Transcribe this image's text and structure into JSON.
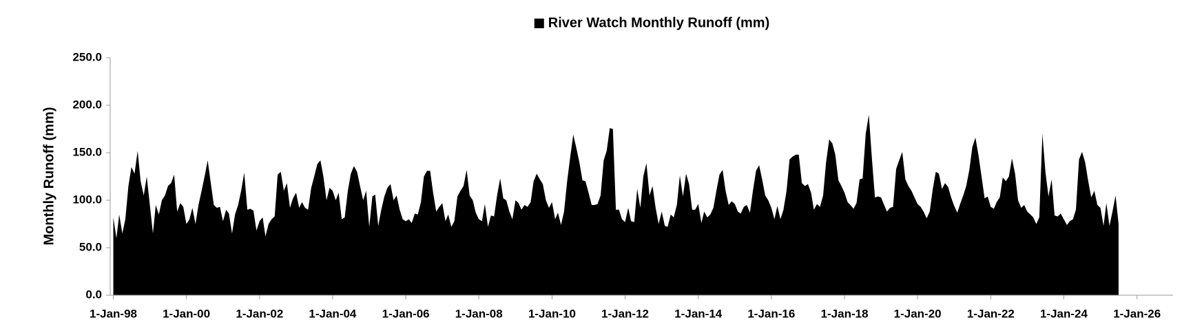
{
  "chart_data": {
    "type": "area",
    "y_label": "Monthly Runoff (mm)",
    "legend": "top",
    "ylim": [
      0,
      250
    ],
    "yticks": [
      {
        "value": 0,
        "label": "0.0"
      },
      {
        "value": 50,
        "label": "50.0"
      },
      {
        "value": 100,
        "label": "100.0"
      },
      {
        "value": 150,
        "label": "150.0"
      },
      {
        "value": 200,
        "label": "200.0"
      },
      {
        "value": 250,
        "label": "250.0"
      }
    ],
    "xlim": [
      "1997-12-01",
      "2026-12-27"
    ],
    "xticks": [
      {
        "value": "1998-01-01",
        "label": "1-Jan-98"
      },
      {
        "value": "2000-01-01",
        "label": "1-Jan-00"
      },
      {
        "value": "2002-01-01",
        "label": "1-Jan-02"
      },
      {
        "value": "2004-01-01",
        "label": "1-Jan-04"
      },
      {
        "value": "2006-01-01",
        "label": "1-Jan-06"
      },
      {
        "value": "2008-01-01",
        "label": "1-Jan-08"
      },
      {
        "value": "2010-01-01",
        "label": "1-Jan-10"
      },
      {
        "value": "2012-01-01",
        "label": "1-Jan-12"
      },
      {
        "value": "2014-01-01",
        "label": "1-Jan-14"
      },
      {
        "value": "2016-01-01",
        "label": "1-Jan-16"
      },
      {
        "value": "2018-01-01",
        "label": "1-Jan-18"
      },
      {
        "value": "2020-01-01",
        "label": "1-Jan-20"
      },
      {
        "value": "2022-01-01",
        "label": "1-Jan-22"
      },
      {
        "value": "2024-01-01",
        "label": "1-Jan-24"
      },
      {
        "value": "2026-01-01",
        "label": "1-Jan-26"
      }
    ],
    "x": [
      "1998-01-01",
      "1998-02-01",
      "1998-03-01",
      "1998-04-01",
      "1998-05-01",
      "1998-06-01",
      "1998-07-01",
      "1998-08-01",
      "1998-09-01",
      "1998-10-01",
      "1998-11-01",
      "1998-12-01",
      "1999-01-01",
      "1999-02-01",
      "1999-03-01",
      "1999-04-01",
      "1999-05-01",
      "1999-06-01",
      "1999-07-01",
      "1999-08-01",
      "1999-09-01",
      "1999-10-01",
      "1999-11-01",
      "1999-12-01",
      "2000-01-01",
      "2000-02-01",
      "2000-03-01",
      "2000-04-01",
      "2000-05-01",
      "2000-06-01",
      "2000-07-01",
      "2000-08-01",
      "2000-09-01",
      "2000-10-01",
      "2000-11-01",
      "2000-12-01",
      "2001-01-01",
      "2001-02-01",
      "2001-03-01",
      "2001-04-01",
      "2001-05-01",
      "2001-06-01",
      "2001-07-01",
      "2001-08-01",
      "2001-09-01",
      "2001-10-01",
      "2001-11-01",
      "2001-12-01",
      "2002-01-01",
      "2002-02-01",
      "2002-03-01",
      "2002-04-01",
      "2002-05-01",
      "2002-06-01",
      "2002-07-01",
      "2002-08-01",
      "2002-09-01",
      "2002-10-01",
      "2002-11-01",
      "2002-12-01",
      "2003-01-01",
      "2003-02-01",
      "2003-03-01",
      "2003-04-01",
      "2003-05-01",
      "2003-06-01",
      "2003-07-01",
      "2003-08-01",
      "2003-09-01",
      "2003-10-01",
      "2003-11-01",
      "2003-12-01",
      "2004-01-01",
      "2004-02-01",
      "2004-03-01",
      "2004-04-01",
      "2004-05-01",
      "2004-06-01",
      "2004-07-01",
      "2004-08-01",
      "2004-09-01",
      "2004-10-01",
      "2004-11-01",
      "2004-12-01",
      "2005-01-01",
      "2005-02-01",
      "2005-03-01",
      "2005-04-01",
      "2005-05-01",
      "2005-06-01",
      "2005-07-01",
      "2005-08-01",
      "2005-09-01",
      "2005-10-01",
      "2005-11-01",
      "2005-12-01",
      "2006-01-01",
      "2006-02-01",
      "2006-03-01",
      "2006-04-01",
      "2006-05-01",
      "2006-06-01",
      "2006-07-01",
      "2006-08-01",
      "2006-09-01",
      "2006-10-01",
      "2006-11-01",
      "2006-12-01",
      "2007-01-01",
      "2007-02-01",
      "2007-03-01",
      "2007-04-01",
      "2007-05-01",
      "2007-06-01",
      "2007-07-01",
      "2007-08-01",
      "2007-09-01",
      "2007-10-01",
      "2007-11-01",
      "2007-12-01",
      "2008-01-01",
      "2008-02-01",
      "2008-03-01",
      "2008-04-01",
      "2008-05-01",
      "2008-06-01",
      "2008-07-01",
      "2008-08-01",
      "2008-09-01",
      "2008-10-01",
      "2008-11-01",
      "2008-12-01",
      "2009-01-01",
      "2009-02-01",
      "2009-03-01",
      "2009-04-01",
      "2009-05-01",
      "2009-06-01",
      "2009-07-01",
      "2009-08-01",
      "2009-09-01",
      "2009-10-01",
      "2009-11-01",
      "2009-12-01",
      "2010-01-01",
      "2010-02-01",
      "2010-03-01",
      "2010-04-01",
      "2010-05-01",
      "2010-06-01",
      "2010-07-01",
      "2010-08-01",
      "2010-09-01",
      "2010-10-01",
      "2010-11-01",
      "2010-12-01",
      "2011-01-01",
      "2011-02-01",
      "2011-03-01",
      "2011-04-01",
      "2011-05-01",
      "2011-06-01",
      "2011-07-01",
      "2011-08-01",
      "2011-09-01",
      "2011-10-01",
      "2011-11-01",
      "2011-12-01",
      "2012-01-01",
      "2012-02-01",
      "2012-03-01",
      "2012-04-01",
      "2012-05-01",
      "2012-06-01",
      "2012-07-01",
      "2012-08-01",
      "2012-09-01",
      "2012-10-01",
      "2012-11-01",
      "2012-12-01",
      "2013-01-01",
      "2013-02-01",
      "2013-03-01",
      "2013-04-01",
      "2013-05-01",
      "2013-06-01",
      "2013-07-01",
      "2013-08-01",
      "2013-09-01",
      "2013-10-01",
      "2013-11-01",
      "2013-12-01",
      "2014-01-01",
      "2014-02-01",
      "2014-03-01",
      "2014-04-01",
      "2014-05-01",
      "2014-06-01",
      "2014-07-01",
      "2014-08-01",
      "2014-09-01",
      "2014-10-01",
      "2014-11-01",
      "2014-12-01",
      "2015-01-01",
      "2015-02-01",
      "2015-03-01",
      "2015-04-01",
      "2015-05-01",
      "2015-06-01",
      "2015-07-01",
      "2015-08-01",
      "2015-09-01",
      "2015-10-01",
      "2015-11-01",
      "2015-12-01",
      "2016-01-01",
      "2016-02-01",
      "2016-03-01",
      "2016-04-01",
      "2016-05-01",
      "2016-06-01",
      "2016-07-01",
      "2016-08-01",
      "2016-09-01",
      "2016-10-01",
      "2016-11-01",
      "2016-12-01",
      "2017-01-01",
      "2017-02-01",
      "2017-03-01",
      "2017-04-01",
      "2017-05-01",
      "2017-06-01",
      "2017-07-01",
      "2017-08-01",
      "2017-09-01",
      "2017-10-01",
      "2017-11-01",
      "2017-12-01",
      "2018-01-01",
      "2018-02-01",
      "2018-03-01",
      "2018-04-01",
      "2018-05-01",
      "2018-06-01",
      "2018-07-01",
      "2018-08-01",
      "2018-09-01",
      "2018-10-01",
      "2018-11-01",
      "2018-12-01",
      "2019-01-01",
      "2019-02-01",
      "2019-03-01",
      "2019-04-01",
      "2019-05-01",
      "2019-06-01",
      "2019-07-01",
      "2019-08-01",
      "2019-09-01",
      "2019-10-01",
      "2019-11-01",
      "2019-12-01",
      "2020-01-01",
      "2020-02-01",
      "2020-03-01",
      "2020-04-01",
      "2020-05-01",
      "2020-06-01",
      "2020-07-01",
      "2020-08-01",
      "2020-09-01",
      "2020-10-01",
      "2020-11-01",
      "2020-12-01",
      "2021-01-01",
      "2021-02-01",
      "2021-03-01",
      "2021-04-01",
      "2021-05-01",
      "2021-06-01",
      "2021-07-01",
      "2021-08-01",
      "2021-09-01",
      "2021-10-01",
      "2021-11-01",
      "2021-12-01",
      "2022-01-01",
      "2022-02-01",
      "2022-03-01",
      "2022-04-01",
      "2022-05-01",
      "2022-06-01",
      "2022-07-01",
      "2022-08-01",
      "2022-09-01",
      "2022-10-01",
      "2022-11-01",
      "2022-12-01",
      "2023-01-01",
      "2023-02-01",
      "2023-03-01",
      "2023-04-01",
      "2023-05-01",
      "2023-06-01",
      "2023-07-01",
      "2023-08-01",
      "2023-09-01",
      "2023-10-01",
      "2023-11-01",
      "2023-12-01",
      "2024-01-01",
      "2024-02-01",
      "2024-03-01",
      "2024-04-01",
      "2024-05-01",
      "2024-06-01",
      "2024-07-01",
      "2024-08-01",
      "2024-09-01",
      "2024-10-01",
      "2024-11-01",
      "2024-12-01",
      "2025-01-01",
      "2025-02-01",
      "2025-03-01",
      "2025-04-01",
      "2025-05-01",
      "2025-06-01",
      "2025-07-01"
    ],
    "series": [
      {
        "name": "River Watch Monthly Runoff (mm)",
        "color": "#000000",
        "values": [
          82,
          60,
          85,
          65,
          80,
          115,
          135,
          128,
          152,
          120,
          105,
          125,
          95,
          65,
          95,
          85,
          100,
          105,
          115,
          118,
          127,
          88,
          97,
          93,
          75,
          80,
          92,
          75,
          95,
          110,
          125,
          142,
          118,
          95,
          92,
          93,
          78,
          90,
          86,
          65,
          85,
          95,
          110,
          129,
          90,
          91,
          89,
          68,
          78,
          82,
          62,
          75,
          80,
          83,
          127,
          130,
          110,
          118,
          92,
          102,
          108,
          92,
          98,
          92,
          90,
          113,
          125,
          138,
          142,
          125,
          100,
          113,
          110,
          100,
          108,
          80,
          82,
          110,
          128,
          136,
          130,
          115,
          100,
          110,
          72,
          104,
          106,
          73,
          90,
          104,
          113,
          117,
          100,
          105,
          90,
          80,
          78,
          80,
          76,
          86,
          85,
          98,
          125,
          131,
          131,
          108,
          88,
          93,
          97,
          78,
          85,
          72,
          78,
          104,
          110,
          115,
          132,
          105,
          100,
          87,
          80,
          78,
          96,
          72,
          84,
          83,
          105,
          123,
          102,
          100,
          88,
          80,
          100,
          97,
          90,
          95,
          93,
          98,
          120,
          128,
          122,
          117,
          100,
          92,
          98,
          80,
          87,
          74,
          88,
          120,
          145,
          169,
          155,
          140,
          121,
          120,
          108,
          95,
          95,
          96,
          105,
          142,
          152,
          176,
          175,
          90,
          90,
          80,
          77,
          92,
          78,
          77,
          112,
          92,
          125,
          139,
          105,
          115,
          92,
          75,
          88,
          73,
          72,
          85,
          82,
          95,
          126,
          104,
          128,
          117,
          90,
          90,
          96,
          76,
          88,
          82,
          85,
          92,
          110,
          127,
          132,
          110,
          95,
          99,
          96,
          88,
          86,
          93,
          95,
          87,
          110,
          131,
          137,
          122,
          105,
          100,
          92,
          80,
          94,
          80,
          90,
          110,
          143,
          146,
          148,
          148,
          118,
          115,
          117,
          108,
          90,
          96,
          93,
          105,
          140,
          164,
          160,
          148,
          121,
          115,
          108,
          98,
          95,
          91,
          97,
          122,
          123,
          170,
          190,
          145,
          103,
          104,
          103,
          95,
          88,
          92,
          93,
          133,
          142,
          151,
          122,
          115,
          110,
          103,
          96,
          93,
          88,
          81,
          88,
          112,
          130,
          128,
          112,
          118,
          114,
          103,
          94,
          87,
          96,
          105,
          115,
          132,
          156,
          166,
          147,
          125,
          102,
          104,
          93,
          91,
          98,
          103,
          124,
          120,
          125,
          144,
          128,
          100,
          92,
          95,
          88,
          85,
          82,
          75,
          82,
          170,
          130,
          104,
          122,
          84,
          83,
          86,
          80,
          74,
          78,
          80,
          90,
          143,
          151,
          140,
          120,
          103,
          110,
          95,
          92,
          73,
          97,
          73,
          88,
          105,
          75
        ]
      }
    ]
  }
}
